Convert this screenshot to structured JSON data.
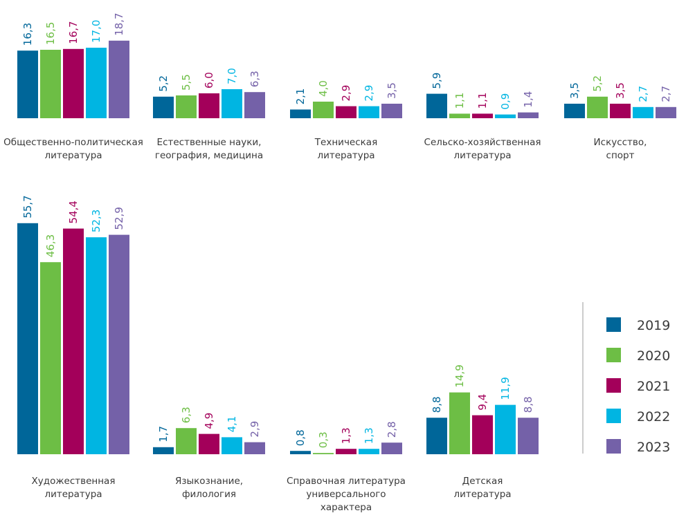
{
  "chart_data": {
    "type": "bar",
    "series_names": [
      "2019",
      "2020",
      "2021",
      "2022",
      "2023"
    ],
    "colors": [
      "#006699",
      "#6dbe45",
      "#a3005a",
      "#00b5e2",
      "#7461a8"
    ],
    "groups": [
      {
        "label_lines": [
          "Общественно-политическая",
          "литература"
        ],
        "values": [
          16.3,
          16.5,
          16.7,
          17.0,
          18.7
        ],
        "value_labels": [
          "16,3",
          "16,5",
          "16,7",
          "17,0",
          "18,7"
        ]
      },
      {
        "label_lines": [
          "Естественные науки,",
          "география, медицина"
        ],
        "values": [
          5.2,
          5.5,
          6.0,
          7.0,
          6.3
        ],
        "value_labels": [
          "5,2",
          "5,5",
          "6,0",
          "7,0",
          "6,3"
        ]
      },
      {
        "label_lines": [
          "Техническая",
          "литература"
        ],
        "values": [
          2.1,
          4.0,
          2.9,
          2.9,
          3.5
        ],
        "value_labels": [
          "2,1",
          "4,0",
          "2,9",
          "2,9",
          "3,5"
        ]
      },
      {
        "label_lines": [
          "Сельско-хозяйственная",
          "литература"
        ],
        "values": [
          5.9,
          1.1,
          1.1,
          0.9,
          1.4
        ],
        "value_labels": [
          "5,9",
          "1,1",
          "1,1",
          "0,9",
          "1,4"
        ]
      },
      {
        "label_lines": [
          "Искусство,",
          "спорт"
        ],
        "values": [
          3.5,
          5.2,
          3.5,
          2.7,
          2.7
        ],
        "value_labels": [
          "3,5",
          "5,2",
          "3,5",
          "2,7",
          "2,7"
        ]
      },
      {
        "label_lines": [
          "Художественная",
          "литература"
        ],
        "values": [
          55.7,
          46.3,
          54.4,
          52.3,
          52.9
        ],
        "value_labels": [
          "55,7",
          "46,3",
          "54,4",
          "52,3",
          "52,9"
        ]
      },
      {
        "label_lines": [
          "Языкознание,",
          "филология"
        ],
        "values": [
          1.7,
          6.3,
          4.9,
          4.1,
          2.9
        ],
        "value_labels": [
          "1,7",
          "6,3",
          "4,9",
          "4,1",
          "2,9"
        ]
      },
      {
        "label_lines": [
          "Справочная литература",
          "универсального",
          "характера"
        ],
        "values": [
          0.8,
          0.3,
          1.3,
          1.3,
          2.8
        ],
        "value_labels": [
          "0,8",
          "0,3",
          "1,3",
          "1,3",
          "2,8"
        ]
      },
      {
        "label_lines": [
          "Детская",
          "литература"
        ],
        "values": [
          8.8,
          14.9,
          9.4,
          11.9,
          8.8
        ],
        "value_labels": [
          "8,8",
          "14,9",
          "9,4",
          "11,9",
          "8,8"
        ]
      }
    ]
  }
}
